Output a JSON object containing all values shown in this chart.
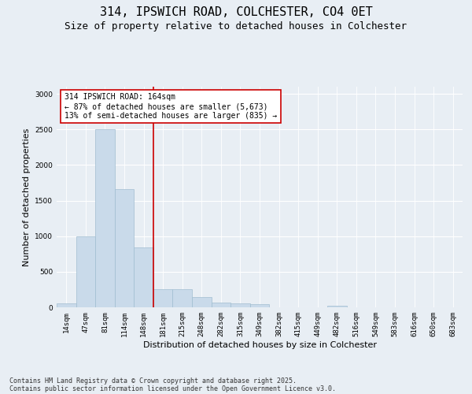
{
  "title_line1": "314, IPSWICH ROAD, COLCHESTER, CO4 0ET",
  "title_line2": "Size of property relative to detached houses in Colchester",
  "xlabel": "Distribution of detached houses by size in Colchester",
  "ylabel": "Number of detached properties",
  "categories": [
    "14sqm",
    "47sqm",
    "81sqm",
    "114sqm",
    "148sqm",
    "181sqm",
    "215sqm",
    "248sqm",
    "282sqm",
    "315sqm",
    "349sqm",
    "382sqm",
    "415sqm",
    "449sqm",
    "482sqm",
    "516sqm",
    "549sqm",
    "583sqm",
    "616sqm",
    "650sqm",
    "683sqm"
  ],
  "values": [
    60,
    1000,
    2500,
    1660,
    840,
    260,
    260,
    140,
    70,
    55,
    40,
    0,
    0,
    0,
    25,
    0,
    0,
    0,
    0,
    0,
    0
  ],
  "bar_color": "#c9daea",
  "bar_edge_color": "#a0bdd0",
  "vline_color": "#cc0000",
  "annotation_text": "314 IPSWICH ROAD: 164sqm\n← 87% of detached houses are smaller (5,673)\n13% of semi-detached houses are larger (835) →",
  "annotation_box_color": "#ffffff",
  "annotation_box_edge": "#cc0000",
  "ylim": [
    0,
    3100
  ],
  "yticks": [
    0,
    500,
    1000,
    1500,
    2000,
    2500,
    3000
  ],
  "background_color": "#e8eef4",
  "plot_bg_color": "#e8eef4",
  "footer_line1": "Contains HM Land Registry data © Crown copyright and database right 2025.",
  "footer_line2": "Contains public sector information licensed under the Open Government Licence v3.0.",
  "title_fontsize": 11,
  "subtitle_fontsize": 9,
  "axis_label_fontsize": 8,
  "tick_fontsize": 6.5,
  "annotation_fontsize": 7,
  "footer_fontsize": 6
}
